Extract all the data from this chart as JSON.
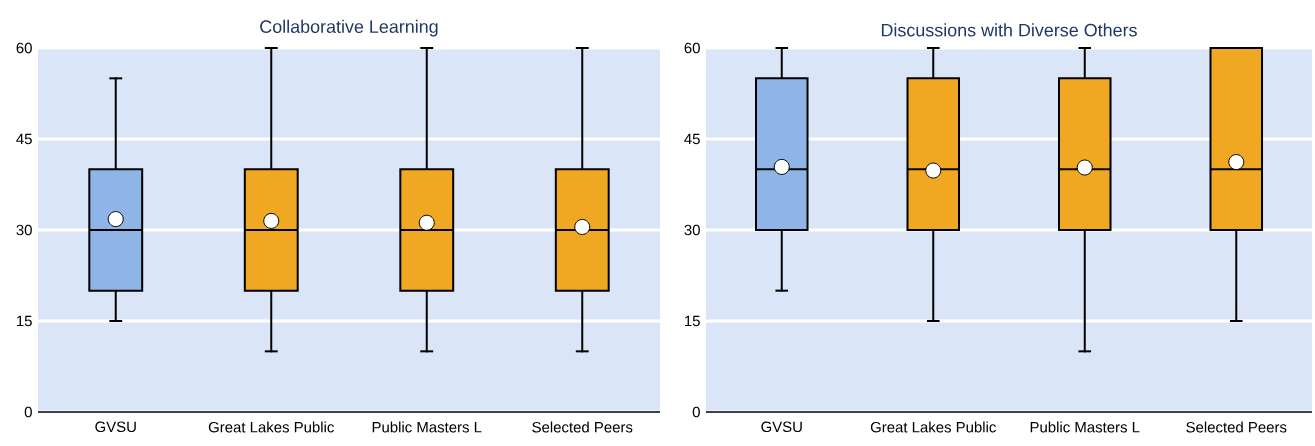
{
  "chart_data": [
    {
      "type": "box",
      "title": "Collaborative Learning",
      "categories": [
        "GVSU",
        "Great Lakes Public",
        "Public Masters L",
        "Selected Peers"
      ],
      "colors": [
        "#8eb4e8",
        "#f0a823",
        "#f0a823",
        "#f0a823"
      ],
      "boxes": [
        {
          "low": 15,
          "q1": 20,
          "median": 30,
          "q3": 40,
          "high": 55,
          "mean": 31.8
        },
        {
          "low": 10,
          "q1": 20,
          "median": 30,
          "q3": 40,
          "high": 60,
          "mean": 31.5
        },
        {
          "low": 10,
          "q1": 20,
          "median": 30,
          "q3": 40,
          "high": 60,
          "mean": 31.2
        },
        {
          "low": 10,
          "q1": 20,
          "median": 30,
          "q3": 40,
          "high": 60,
          "mean": 30.5
        }
      ],
      "ylim": [
        0,
        60
      ],
      "yticks": [
        0,
        15,
        30,
        45,
        60
      ],
      "grid": "y"
    },
    {
      "type": "box",
      "title": "Discussions with Diverse Others",
      "categories": [
        "GVSU",
        "Great Lakes Public",
        "Public Masters L",
        "Selected Peers"
      ],
      "colors": [
        "#8eb4e8",
        "#f0a823",
        "#f0a823",
        "#f0a823"
      ],
      "boxes": [
        {
          "low": 20,
          "q1": 30,
          "median": 40,
          "q3": 55,
          "high": 60,
          "mean": 40.4
        },
        {
          "low": 15,
          "q1": 30,
          "median": 40,
          "q3": 55,
          "high": 60,
          "mean": 39.8
        },
        {
          "low": 10,
          "q1": 30,
          "median": 40,
          "q3": 55,
          "high": 60,
          "mean": 40.3
        },
        {
          "low": 15,
          "q1": 30,
          "median": 40,
          "q3": 60,
          "high": 60,
          "mean": 41.2
        }
      ],
      "ylim": [
        0,
        60
      ],
      "yticks": [
        0,
        15,
        30,
        45,
        60
      ],
      "grid": "y"
    }
  ]
}
